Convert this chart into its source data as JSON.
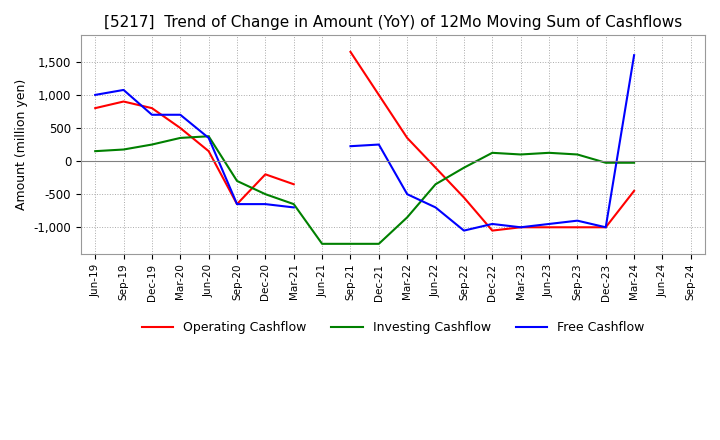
{
  "title": "[5217]  Trend of Change in Amount (YoY) of 12Mo Moving Sum of Cashflows",
  "ylabel": "Amount (million yen)",
  "x_labels": [
    "Jun-19",
    "Sep-19",
    "Dec-19",
    "Mar-20",
    "Jun-20",
    "Sep-20",
    "Dec-20",
    "Mar-21",
    "Jun-21",
    "Sep-21",
    "Dec-21",
    "Mar-22",
    "Jun-22",
    "Sep-22",
    "Dec-22",
    "Mar-23",
    "Jun-23",
    "Sep-23",
    "Dec-23",
    "Mar-24",
    "Jun-24",
    "Sep-24"
  ],
  "operating": [
    800,
    900,
    800,
    500,
    150,
    -650,
    -200,
    -350,
    null,
    1650,
    1000,
    350,
    -100,
    -550,
    -1050,
    -1000,
    -1000,
    -1000,
    -1000,
    -450,
    null,
    null
  ],
  "investing": [
    150,
    175,
    250,
    350,
    375,
    -300,
    -500,
    -650,
    -1250,
    -1250,
    -1250,
    -850,
    -350,
    -100,
    125,
    100,
    125,
    100,
    -25,
    -25,
    null,
    null
  ],
  "free": [
    1000,
    1075,
    700,
    700,
    350,
    -650,
    -650,
    -700,
    null,
    225,
    250,
    -500,
    -700,
    -1050,
    -950,
    -1000,
    -950,
    -900,
    -1000,
    1600,
    null,
    null
  ],
  "operating_color": "#ff0000",
  "investing_color": "#008000",
  "free_color": "#0000ff",
  "ylim": [
    -1400,
    1900
  ],
  "yticks": [
    -1000,
    -500,
    0,
    500,
    1000,
    1500
  ],
  "background_color": "#ffffff",
  "grid_color": "#aaaaaa",
  "title_fontsize": 11,
  "axis_fontsize": 9,
  "legend_fontsize": 9
}
